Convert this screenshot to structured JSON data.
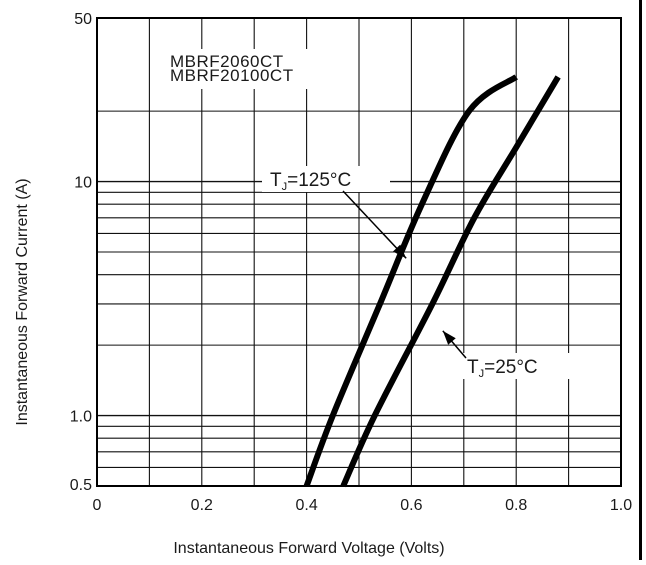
{
  "chart_data": {
    "type": "line",
    "xlabel": "Instantaneous Forward Voltage (Volts)",
    "ylabel": "Instantaneous Forward Current (A)",
    "xlim": [
      0,
      1.0
    ],
    "ylim": [
      0.5,
      50
    ],
    "yscale": "log",
    "x_ticks": [
      0,
      0.2,
      0.4,
      0.6,
      0.8,
      1.0
    ],
    "x_tick_labels": [
      "0",
      "0.2",
      "0.4",
      "0.6",
      "0.8",
      "1.0"
    ],
    "y_ticks": [
      0.5,
      1.0,
      10,
      50
    ],
    "y_tick_labels": [
      "0.5",
      "1.0",
      "10",
      "50"
    ],
    "grid": true,
    "legend_box": [
      "MBRF2060CT",
      "MBRF20100CT"
    ],
    "series": [
      {
        "values": [
          [
            0.4,
            0.5
          ],
          [
            0.45,
            1.0
          ],
          [
            0.54,
            3.0
          ],
          [
            0.62,
            8.0
          ],
          [
            0.71,
            20.0
          ],
          [
            0.8,
            28.0
          ]
        ]
      },
      {
        "values": [
          [
            0.47,
            0.5
          ],
          [
            0.53,
            1.0
          ],
          [
            0.64,
            3.0
          ],
          [
            0.72,
            7.0
          ],
          [
            0.8,
            14.0
          ],
          [
            0.88,
            28.0
          ]
        ]
      }
    ],
    "annotations": [
      {
        "label_pre": "T",
        "label_sub": "J",
        "label_post": "=125°C",
        "points_to": [
          0.59,
          4.7
        ]
      },
      {
        "label_pre": "T",
        "label_sub": "J",
        "label_post": "=25°C",
        "points_to": [
          0.66,
          2.3
        ]
      }
    ]
  }
}
